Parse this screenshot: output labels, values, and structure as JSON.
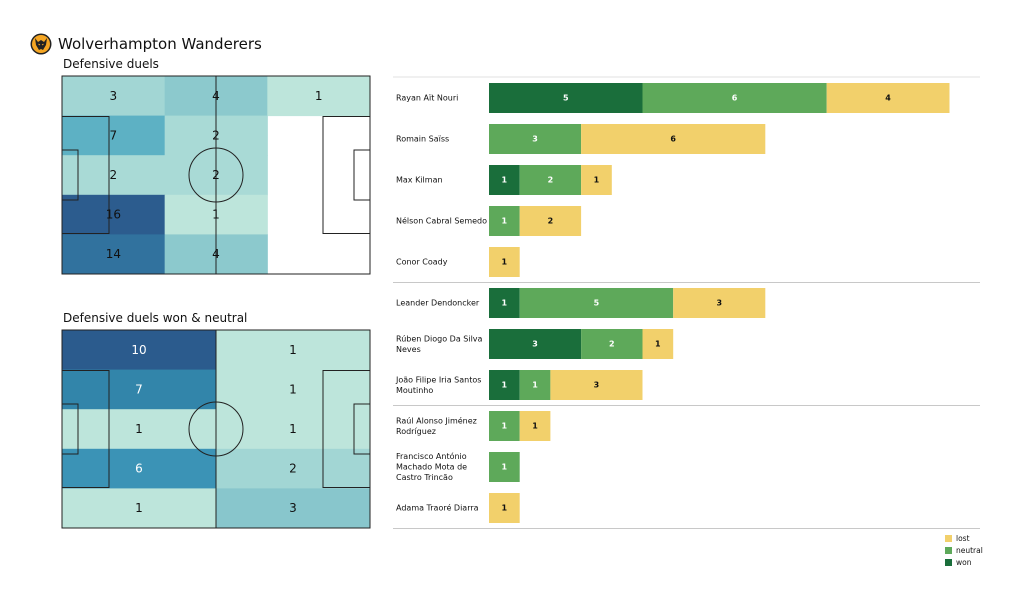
{
  "header": {
    "team": "Wolverhampton Wanderers",
    "crest_icon": "wolf-head-crest-icon"
  },
  "colors": {
    "won": "#1a6e3b",
    "neutral": "#5ea95a",
    "lost": "#f2d06b",
    "separator": "#c8c8c8",
    "pitch_line": "#222222"
  },
  "chart_data": [
    {
      "type": "heatmap",
      "title": "Defensive duels",
      "grid": [
        [
          3,
          4,
          1
        ],
        [
          7,
          2,
          null
        ],
        [
          2,
          2,
          null
        ],
        [
          16,
          1,
          null
        ],
        [
          14,
          4,
          null
        ]
      ],
      "colors": [
        [
          "#a2d6d4",
          "#8cc9cd",
          "#bde5db"
        ],
        [
          "#5db1c4",
          "#a9dad6",
          null
        ],
        [
          "#a9dad6",
          "#a9dad6",
          null
        ],
        [
          "#2c5c8e",
          "#bde5db",
          null
        ],
        [
          "#31729e",
          "#8cc9cd",
          null
        ]
      ]
    },
    {
      "type": "heatmap",
      "title": "Defensive duels won & neutral",
      "grid": [
        [
          10,
          1
        ],
        [
          7,
          1
        ],
        [
          1,
          1
        ],
        [
          6,
          2
        ],
        [
          1,
          3
        ]
      ],
      "colors": [
        [
          "#2b5b8d",
          "#bde5db"
        ],
        [
          "#3285aa",
          "#bde5db"
        ],
        [
          "#bde5db",
          "#bde5db"
        ],
        [
          "#3b93b6",
          "#a2d6d4"
        ],
        [
          "#bde5db",
          "#88c6cc"
        ]
      ]
    },
    {
      "type": "bar",
      "stacked": true,
      "orientation": "horizontal",
      "categories": [
        "Rayan Aït Nouri",
        "Romain Saïss",
        "Max Kilman",
        "Nélson Cabral Semedo",
        "Conor  Coady",
        "Leander Dendoncker",
        "Rúben Diogo Da Silva Neves",
        "João Filipe Iria Santos Moutinho",
        "Raúl Alonso Jiménez Rodríguez",
        "Francisco António Machado Mota de Castro Trincão",
        "Adama Traoré Diarra"
      ],
      "category_lines": [
        [
          "Rayan Aït Nouri"
        ],
        [
          "Romain Saïss"
        ],
        [
          "Max Kilman"
        ],
        [
          "Nélson Cabral Semedo"
        ],
        [
          "Conor  Coady"
        ],
        [
          "Leander Dendoncker"
        ],
        [
          "Rúben Diogo Da Silva",
          "Neves"
        ],
        [
          "João Filipe Iria Santos",
          "Moutinho"
        ],
        [
          "Raúl Alonso Jiménez",
          "Rodríguez"
        ],
        [
          "Francisco António",
          "Machado Mota de",
          "Castro Trincão"
        ],
        [
          "Adama Traoré Diarra"
        ]
      ],
      "groups": [
        5,
        3,
        3
      ],
      "series": [
        {
          "name": "won",
          "values": [
            5,
            0,
            1,
            0,
            0,
            1,
            3,
            1,
            0,
            0,
            0
          ]
        },
        {
          "name": "neutral",
          "values": [
            6,
            3,
            2,
            1,
            0,
            5,
            2,
            1,
            1,
            1,
            0
          ]
        },
        {
          "name": "lost",
          "values": [
            4,
            6,
            1,
            2,
            1,
            3,
            1,
            3,
            1,
            0,
            1
          ]
        }
      ],
      "legend": [
        "lost",
        "neutral",
        "won"
      ],
      "legend_position": "bottom-right"
    }
  ]
}
